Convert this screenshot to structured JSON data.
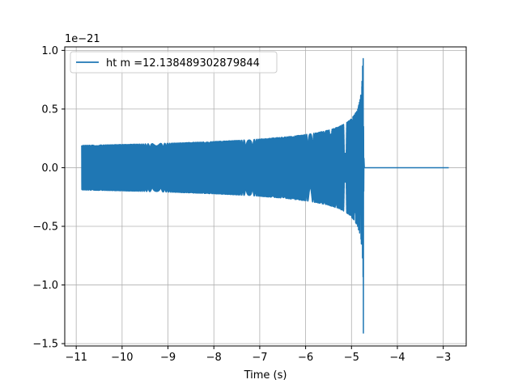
{
  "chart_data": {
    "type": "line",
    "title": "",
    "xlabel": "Time (s)",
    "ylabel": "",
    "y_scale_label": "1e−21",
    "xlim": [
      -11.25,
      -2.5
    ],
    "ylim": [
      -1.52,
      1.03
    ],
    "x_ticks": [
      -11,
      -10,
      -9,
      -8,
      -7,
      -6,
      -5,
      -4,
      -3
    ],
    "x_tick_labels": [
      "−11",
      "−10",
      "−9",
      "−8",
      "−7",
      "−6",
      "−5",
      "−4",
      "−3"
    ],
    "y_ticks": [
      -1.5,
      -1.0,
      -0.5,
      0.0,
      0.5,
      1.0
    ],
    "y_tick_labels": [
      "−1.5",
      "−1.0",
      "−0.5",
      "0.0",
      "0.5",
      "1.0"
    ],
    "grid": true,
    "legend_position": "top-left",
    "series": [
      {
        "name": "ht m =12.138489302879844",
        "color": "#1f77b4",
        "t_start": -10.88,
        "t_merger": -4.745,
        "t_end": -2.88,
        "amp_start": 0.19,
        "amp_peak_pos": 0.93,
        "amp_peak_neg": -1.41,
        "ringdown_end": -4.72
      }
    ]
  }
}
